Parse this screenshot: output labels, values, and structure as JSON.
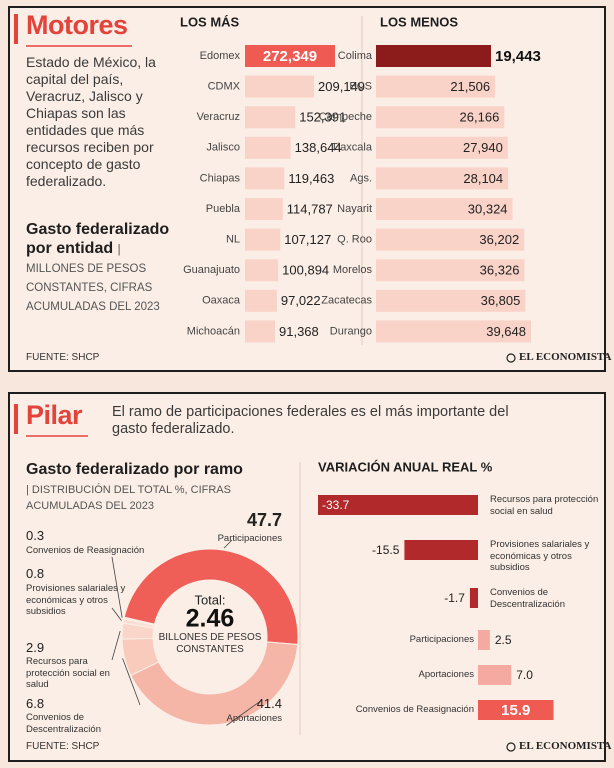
{
  "sections": [
    {
      "heading": "Motores",
      "text": "Estado de México, la capital del país, Veracruz, Jalisco y Chiapas son las entidades que más recursos reciben por concepto de gasto federalizado.",
      "chart_title": "Gasto federalizado por entidad",
      "chart_note": "| MILLONES DE PESOS CONSTANTES, CIFRAS ACUMULADAS DEL 2023",
      "source": "FUENTE: SHCP",
      "brand": "EL ECONOMISTA"
    },
    {
      "heading": "Pilar",
      "text": "El ramo de participaciones federales es el más importante del gasto federalizado.",
      "chart_title": "Gasto federalizado por ramo",
      "chart_note": "| DISTRIBUCIÓN DEL TOTAL %, CIFRAS ACUMULADAS DEL 2023",
      "source": "FUENTE: SHCP",
      "brand": "EL ECONOMISTA"
    }
  ],
  "chart_data": [
    {
      "type": "bar",
      "title": "LOS MÁS",
      "categories": [
        "Edomex",
        "CDMX",
        "Veracruz",
        "Jalisco",
        "Chiapas",
        "Puebla",
        "NL",
        "Guanajuato",
        "Oaxaca",
        "Michoacán"
      ],
      "values": [
        272349,
        209149,
        152391,
        138644,
        119463,
        114787,
        107127,
        100894,
        97022,
        91368
      ],
      "value_labels": [
        "272,349",
        "209,149",
        "152,391",
        "138,644",
        "119,463",
        "114,787",
        "107,127",
        "100,894",
        "97,022",
        "91,368"
      ],
      "color": "#f9d3c7",
      "highlight_color": "#ef5a52"
    },
    {
      "type": "bar",
      "title": "LOS MENOS",
      "categories": [
        "Colima",
        "BCS",
        "Campeche",
        "Tlaxcala",
        "Ags.",
        "Nayarit",
        "Q. Roo",
        "Morelos",
        "Zacatecas",
        "Durango"
      ],
      "values": [
        19443,
        21506,
        26166,
        27940,
        28104,
        30324,
        36202,
        36326,
        36805,
        39648
      ],
      "value_labels": [
        "19,443",
        "21,506",
        "26,166",
        "27,940",
        "28,104",
        "30,324",
        "36,202",
        "36,326",
        "36,805",
        "39,648"
      ],
      "color": "#f9d3c7",
      "highlight_color": "#8c1c1c"
    },
    {
      "type": "pie",
      "donut": true,
      "categories": [
        "Participaciones",
        "Aportaciones",
        "Convenios de Descentralización",
        "Recursos para protección social en salud",
        "Provisiones salariales y económicas y otros subsidios",
        "Convenios de Reasignación"
      ],
      "values": [
        47.7,
        41.4,
        6.8,
        2.9,
        0.8,
        0.3
      ],
      "colors": [
        "#ef5f58",
        "#f6b6a7",
        "#f9cbbd",
        "#fad6ca",
        "#fbdfd5",
        "#fce6dd"
      ],
      "center_label": "Total:",
      "center_value": 2.46,
      "center_note": "BILLONES DE PESOS CONSTANTES"
    },
    {
      "type": "bar",
      "title": "VARIACIÓN ANUAL REAL %",
      "categories": [
        "Recursos para protección social en salud",
        "Provisiones salariales y económicas y otros subsidios",
        "Convenios de Descentralización",
        "Participaciones",
        "Aportaciones",
        "Convenios de Reasignación"
      ],
      "values": [
        -33.7,
        -15.5,
        -1.7,
        2.5,
        7.0,
        15.9
      ],
      "value_labels": [
        "-33.7",
        "-15.5",
        "-1.7",
        "2.5",
        "7.0",
        "15.9"
      ],
      "negative_color": "#b2292b",
      "positive_color": "#f4aaa1",
      "highlight_color": "#ef5a52"
    }
  ]
}
